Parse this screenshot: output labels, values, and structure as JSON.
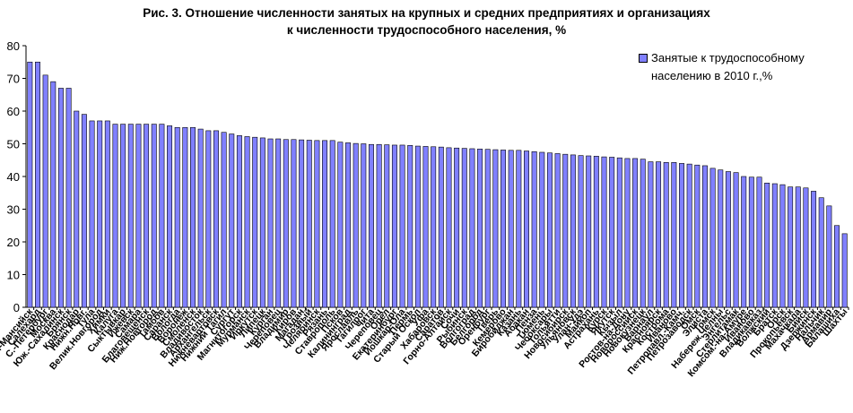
{
  "chart_data": {
    "type": "bar",
    "title_line1": "Рис. 3. Отношение численности занятых на крупных и средних предприятиях и организациях",
    "title_line2": "к численности трудоспособного населения, %",
    "legend": [
      "Занятые к трудоспособному",
      "населению в 2010 г.,%"
    ],
    "ylim": [
      0,
      80
    ],
    "yticks": [
      0,
      10,
      20,
      30,
      40,
      50,
      60,
      70,
      80
    ],
    "grid": false,
    "legend_position": "top-right",
    "bar_color": "#8080ff",
    "categories": [
      "Ханты-Мансийск",
      "Салехард",
      "С.-Петербург",
      "Москва",
      "Юж.-Сахалинск",
      "Брянск",
      "Краснодар",
      "Нижн.Новг.",
      "Тула",
      "Велик.Новгород",
      "Химки",
      "Калуга",
      "Сыктывкар",
      "Ижевск",
      "Самара",
      "Благовещенск",
      "Ниж.Новгород",
      "Тамбов",
      "Саранск",
      "Вологда",
      "Воронеж",
      "Смоленск",
      "Владивосток",
      "Архангельск",
      "Нижневартовск",
      "Нижний Тагил",
      "Сургут",
      "Магнитогорск",
      "Мурманск",
      "Иркутск",
      "Липецк",
      "Курган",
      "Череповец",
      "Владимир",
      "Киров",
      "Магадан",
      "Грозный",
      "Челябинск",
      "Рязань",
      "Ставрополь",
      "Псков",
      "Калининград",
      "Ярославль",
      "Тагилрог",
      "Чита",
      "Череповец",
      "Орел",
      "Екатеринбург",
      "Йошкар-Ола",
      "Пермь",
      "Старый Оскол",
      "Уфа",
      "Хабаровск",
      "Саратов",
      "Горно-Алтайск",
      "Сочи",
      "Рыбинск",
      "Волгоград",
      "Белгород",
      "Оренбург",
      "Тверь",
      "Кемерово",
      "Биробиджан",
      "Казань",
      "Абакан",
      "Пенза",
      "Тюмень",
      "Чебоксары",
      "Тольятти",
      "Новосибирск",
      "Ульяновск",
      "Улан-Удэ",
      "Майкоп",
      "Астрахань",
      "Курск",
      "Якутск",
      "Кызыл",
      "Ростов-на-Дону",
      "Новороссийск",
      "Новокузнецк",
      "Барнаул",
      "Красноярск",
      "Кострома",
      "Иваново",
      "Петропавл.-Камч.",
      "Петрозаводск",
      "Омск",
      "Элиста",
      "Томск",
      "Набереж.Челны",
      "Энгельс",
      "Стерлитамак",
      "Комсом.-на-Амуре",
      "Иваново",
      "Владикавказ",
      "Волжский",
      "Братск",
      "Орск",
      "Прокопьевск",
      "Махачкала",
      "Бийск",
      "Дзержинск",
      "Нальчик",
      "Армавир",
      "Балашиха",
      "Шахты"
    ],
    "values": [
      75,
      75,
      71,
      69,
      67,
      67,
      60,
      59,
      57,
      57,
      57,
      56,
      56,
      56,
      56,
      56,
      56,
      56,
      55.5,
      55,
      55,
      55,
      54.5,
      54,
      54,
      53.5,
      53,
      52.5,
      52.2,
      52,
      51.8,
      51.5,
      51.5,
      51.3,
      51.3,
      51.2,
      51.1,
      51,
      51,
      51,
      50.5,
      50.3,
      50.1,
      50,
      49.8,
      49.8,
      49.7,
      49.6,
      49.6,
      49.5,
      49.3,
      49.2,
      49.1,
      49,
      48.8,
      48.7,
      48.6,
      48.5,
      48.4,
      48.3,
      48.2,
      48.1,
      48,
      48,
      47.8,
      47.6,
      47.4,
      47.2,
      47,
      46.8,
      46.6,
      46.4,
      46.3,
      46.2,
      46,
      45.9,
      45.7,
      45.5,
      45.5,
      45.3,
      44.5,
      44.5,
      44.3,
      44.3,
      44,
      43.8,
      43.5,
      43.3,
      42.5,
      42,
      41.5,
      41.2,
      40,
      39.8,
      39.8,
      38,
      37.8,
      37.5,
      36.8,
      36.8,
      36.5,
      35.5,
      33.5,
      31,
      25,
      22.5
    ]
  }
}
